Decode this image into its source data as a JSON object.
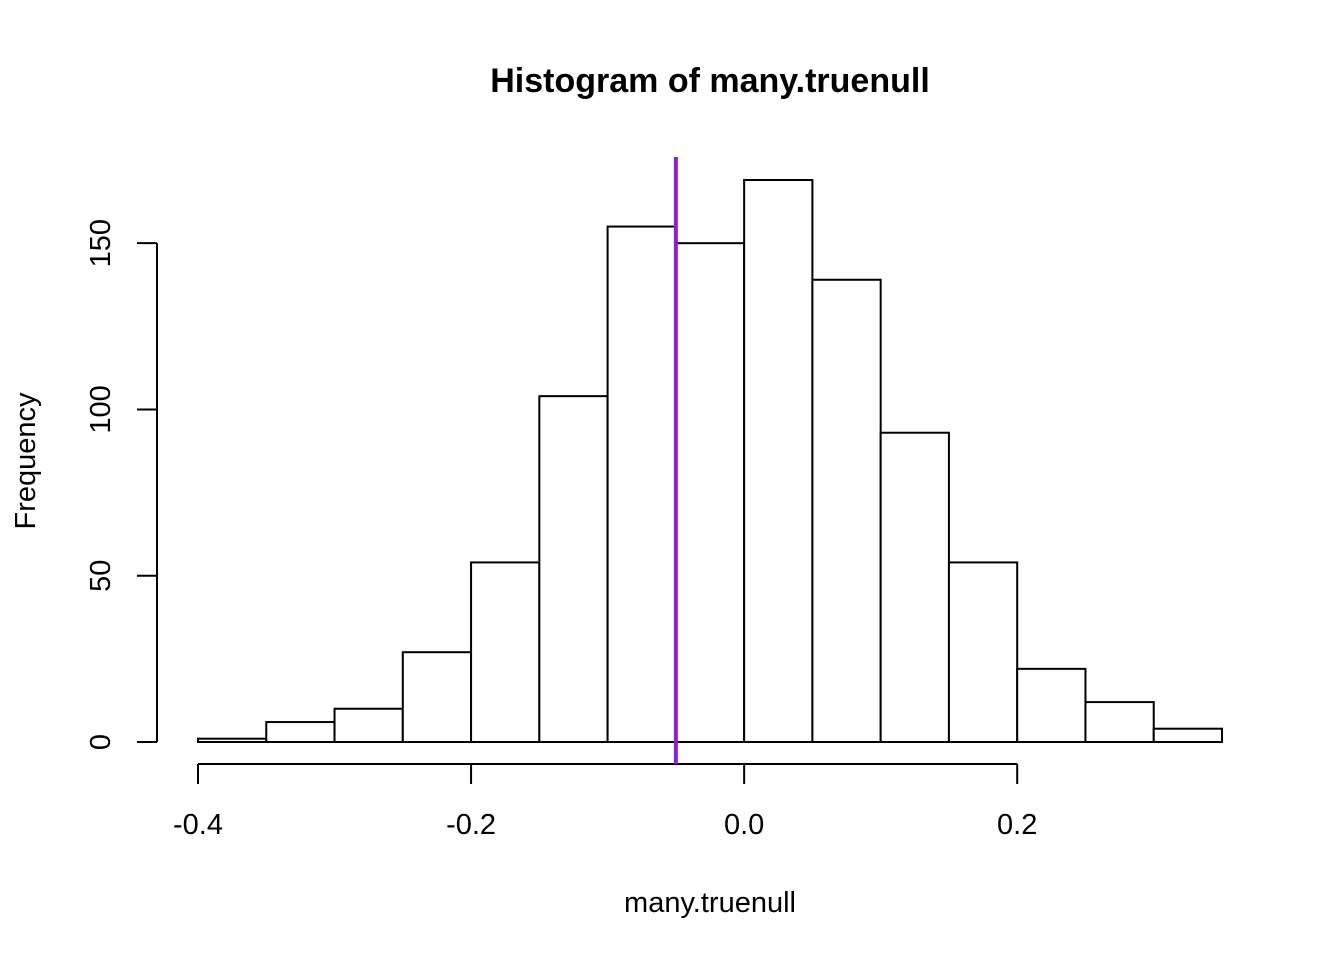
{
  "chart_data": {
    "type": "bar",
    "title": "Histogram of many.truenull",
    "xlabel": "many.truenull",
    "ylabel": "Frequency",
    "bin_edges": [
      -0.4,
      -0.35,
      -0.3,
      -0.25,
      -0.2,
      -0.15,
      -0.1,
      -0.05,
      0.0,
      0.05,
      0.1,
      0.15,
      0.2,
      0.25,
      0.3,
      0.35
    ],
    "values": [
      1,
      6,
      10,
      27,
      54,
      104,
      155,
      150,
      169,
      139,
      93,
      54,
      22,
      12,
      4
    ],
    "xlim": [
      -0.4,
      0.35
    ],
    "ylim": [
      0,
      169
    ],
    "x_ticks": [
      -0.4,
      -0.2,
      0.0,
      0.2
    ],
    "x_tick_labels": [
      "-0.4",
      "-0.2",
      "0.0",
      "0.2"
    ],
    "y_ticks": [
      0,
      50,
      100,
      150
    ],
    "y_tick_labels": [
      "0",
      "50",
      "100",
      "150"
    ],
    "vline": {
      "x": -0.05,
      "color": "#8a1ee0"
    },
    "bar_fill": "#ffffff",
    "bar_stroke": "#000000",
    "grid": false,
    "legend": "none"
  }
}
